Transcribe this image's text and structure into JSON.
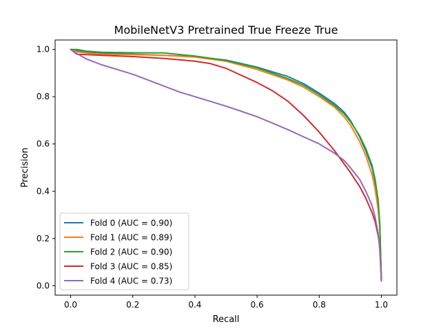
{
  "chart_data": {
    "type": "line",
    "title": "MobileNetV3 Pretrained True Freeze True",
    "xlabel": "Recall",
    "ylabel": "Precision",
    "xlim": [
      -0.05,
      1.05
    ],
    "ylim": [
      -0.04,
      1.04
    ],
    "xticks": [
      0.0,
      0.2,
      0.4,
      0.6,
      0.8,
      1.0
    ],
    "yticks": [
      0.0,
      0.2,
      0.4,
      0.6,
      0.8,
      1.0
    ],
    "xtick_labels": [
      "0.0",
      "0.2",
      "0.4",
      "0.6",
      "0.8",
      "1.0"
    ],
    "ytick_labels": [
      "0.0",
      "0.2",
      "0.4",
      "0.6",
      "0.8",
      "1.0"
    ],
    "grid": false,
    "legend_position": "lower-left",
    "series": [
      {
        "name": "Fold 0 (AUC = 0.90)",
        "color": "#1f77b4",
        "x": [
          0.0,
          0.02,
          0.05,
          0.1,
          0.2,
          0.3,
          0.4,
          0.5,
          0.6,
          0.7,
          0.75,
          0.8,
          0.85,
          0.88,
          0.9,
          0.93,
          0.95,
          0.97,
          0.98,
          0.99,
          0.995,
          1.0
        ],
        "y": [
          1.0,
          0.995,
          0.99,
          0.985,
          0.98,
          0.975,
          0.97,
          0.955,
          0.925,
          0.885,
          0.855,
          0.815,
          0.77,
          0.735,
          0.7,
          0.63,
          0.57,
          0.5,
          0.44,
          0.35,
          0.25,
          0.02
        ]
      },
      {
        "name": "Fold 1 (AUC = 0.89)",
        "color": "#ff7f0e",
        "x": [
          0.0,
          0.02,
          0.05,
          0.1,
          0.2,
          0.3,
          0.4,
          0.5,
          0.6,
          0.7,
          0.75,
          0.8,
          0.85,
          0.88,
          0.9,
          0.93,
          0.95,
          0.97,
          0.98,
          0.99,
          0.995,
          1.0
        ],
        "y": [
          1.0,
          0.99,
          0.985,
          0.98,
          0.978,
          0.975,
          0.968,
          0.95,
          0.915,
          0.87,
          0.84,
          0.8,
          0.755,
          0.715,
          0.68,
          0.61,
          0.55,
          0.47,
          0.41,
          0.32,
          0.24,
          0.02
        ]
      },
      {
        "name": "Fold 2 (AUC = 0.90)",
        "color": "#2ca02c",
        "x": [
          0.0,
          0.02,
          0.05,
          0.1,
          0.2,
          0.3,
          0.4,
          0.5,
          0.6,
          0.7,
          0.75,
          0.8,
          0.85,
          0.88,
          0.9,
          0.93,
          0.95,
          0.97,
          0.98,
          0.99,
          0.995,
          1.0
        ],
        "y": [
          1.0,
          1.0,
          0.993,
          0.988,
          0.986,
          0.985,
          0.972,
          0.953,
          0.922,
          0.876,
          0.848,
          0.808,
          0.762,
          0.727,
          0.695,
          0.635,
          0.58,
          0.51,
          0.45,
          0.36,
          0.26,
          0.02
        ]
      },
      {
        "name": "Fold 3 (AUC = 0.85)",
        "color": "#d62728",
        "x": [
          0.0,
          0.02,
          0.05,
          0.1,
          0.2,
          0.3,
          0.4,
          0.45,
          0.5,
          0.55,
          0.6,
          0.65,
          0.7,
          0.75,
          0.8,
          0.85,
          0.9,
          0.93,
          0.95,
          0.97,
          0.98,
          0.99,
          0.995,
          1.0
        ],
        "y": [
          1.0,
          0.98,
          0.978,
          0.975,
          0.97,
          0.962,
          0.95,
          0.94,
          0.92,
          0.89,
          0.86,
          0.825,
          0.78,
          0.72,
          0.65,
          0.57,
          0.48,
          0.42,
          0.37,
          0.31,
          0.27,
          0.21,
          0.16,
          0.02
        ]
      },
      {
        "name": "Fold 4 (AUC = 0.73)",
        "color": "#9467bd",
        "x": [
          0.0,
          0.01,
          0.03,
          0.05,
          0.1,
          0.15,
          0.2,
          0.25,
          0.3,
          0.35,
          0.4,
          0.45,
          0.5,
          0.55,
          0.6,
          0.65,
          0.7,
          0.75,
          0.8,
          0.85,
          0.88,
          0.9,
          0.93,
          0.95,
          0.97,
          0.98,
          0.99,
          0.995,
          1.0
        ],
        "y": [
          1.0,
          0.99,
          0.975,
          0.96,
          0.935,
          0.915,
          0.895,
          0.87,
          0.845,
          0.82,
          0.8,
          0.78,
          0.76,
          0.738,
          0.715,
          0.688,
          0.66,
          0.63,
          0.6,
          0.56,
          0.53,
          0.5,
          0.45,
          0.4,
          0.34,
          0.29,
          0.22,
          0.15,
          0.02
        ]
      }
    ]
  }
}
